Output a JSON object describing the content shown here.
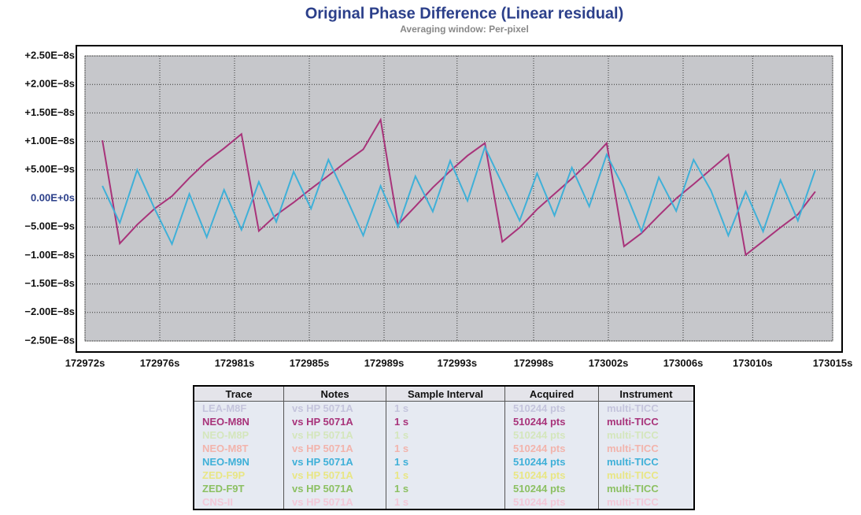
{
  "chart_data": {
    "type": "line",
    "title": "Original Phase Difference (Linear residual)",
    "subtitle": "Averaging window: Per-pixel",
    "x": [
      172973,
      172974,
      172975,
      172976,
      172977,
      172978,
      172979,
      172980,
      172981,
      172982,
      172983,
      172984,
      172985,
      172986,
      172987,
      172988,
      172989,
      172990,
      172991,
      172992,
      172993,
      172994,
      172995,
      172996,
      172997,
      172998,
      172999,
      173000,
      173001,
      173002,
      173003,
      173004,
      173005,
      173006,
      173007,
      173008,
      173009,
      173010,
      173011,
      173012,
      173013,
      173014
    ],
    "series": [
      {
        "color": "#a8337a",
        "values": [
          1.02e-08,
          -7.9e-09,
          -4.6e-09,
          -1.8e-09,
          4e-10,
          3.6e-09,
          6.5e-09,
          8.8e-09,
          1.13e-08,
          -5.7e-09,
          -2.9e-09,
          -7e-10,
          1.7e-09,
          4e-09,
          6.4e-09,
          8.6e-09,
          1.38e-08,
          -4.6e-09,
          -1.4e-09,
          1.9e-09,
          4.8e-09,
          7.5e-09,
          9.7e-09,
          -7.6e-09,
          -5.1e-09,
          -1.9e-09,
          8e-10,
          3.5e-09,
          6.4e-09,
          9.7e-09,
          -8.4e-09,
          -6.1e-09,
          -3e-09,
          0,
          2.5e-09,
          5.1e-09,
          7.7e-09,
          -9.9e-09,
          -7.5e-09,
          -5.1e-09,
          -2.8e-09,
          1.2e-09
        ]
      },
      {
        "color": "#3fb0d8",
        "values": [
          2.2e-09,
          -4.3e-09,
          5e-09,
          -1.8e-09,
          -8e-09,
          8e-10,
          -6.8e-09,
          1.5e-09,
          -5.5e-09,
          2.9e-09,
          -4.1e-09,
          4.7e-09,
          -1.8e-09,
          6.8e-09,
          3e-10,
          -6.5e-09,
          2.2e-09,
          -5e-09,
          3.9e-09,
          -2.3e-09,
          6.6e-09,
          -4e-10,
          9e-09,
          2.6e-09,
          -3.9e-09,
          4.4e-09,
          -3e-09,
          5.4e-09,
          -1.4e-09,
          7.7e-09,
          1.7e-09,
          -5.8e-09,
          3.7e-09,
          -2.2e-09,
          6.8e-09,
          1.4e-09,
          -6.5e-09,
          1.2e-09,
          -5.8e-09,
          3.2e-09,
          -3.9e-09,
          5e-09
        ]
      }
    ],
    "xlim": [
      172972,
      173015
    ],
    "xticks": [
      {
        "value": 172972,
        "label": "172972s"
      },
      {
        "value": 172976.3,
        "label": "172976s"
      },
      {
        "value": 172980.6,
        "label": "172981s"
      },
      {
        "value": 172984.9,
        "label": "172985s"
      },
      {
        "value": 172989.2,
        "label": "172989s"
      },
      {
        "value": 172993.4,
        "label": "172993s"
      },
      {
        "value": 172997.8,
        "label": "172998s"
      },
      {
        "value": 173002.1,
        "label": "173002s"
      },
      {
        "value": 173006.4,
        "label": "173006s"
      },
      {
        "value": 173010.4,
        "label": "173010s"
      },
      {
        "value": 173015,
        "label": "173015s"
      }
    ],
    "ylim": [
      -2.5e-08,
      2.5e-08
    ],
    "yticks": [
      {
        "value": 2.5e-08,
        "label": "+2.50E−8s"
      },
      {
        "value": 2e-08,
        "label": "+2.00E−8s"
      },
      {
        "value": 1.5e-08,
        "label": "+1.50E−8s"
      },
      {
        "value": 1e-08,
        "label": "+1.00E−8s"
      },
      {
        "value": 5e-09,
        "label": "+5.00E−9s"
      },
      {
        "value": 0,
        "label": "0.00E+0s"
      },
      {
        "value": -5e-09,
        "label": "−5.00E−9s"
      },
      {
        "value": -1e-08,
        "label": "−1.00E−8s"
      },
      {
        "value": -1.5e-08,
        "label": "−1.50E−8s"
      },
      {
        "value": -2e-08,
        "label": "−2.00E−8s"
      },
      {
        "value": -2.5e-08,
        "label": "−2.50E−8s"
      }
    ],
    "grid": true
  },
  "legend_table": {
    "columns": [
      "Trace",
      "Notes",
      "Sample Interval",
      "Acquired",
      "Instrument"
    ],
    "rows": [
      [
        "LEA-M8F",
        "vs HP 5071A",
        "1 s",
        "510244 pts",
        "multi-TICC"
      ],
      [
        "NEO-M8N",
        "vs HP 5071A",
        "1 s",
        "510244 pts",
        "multi-TICC"
      ],
      [
        "NEO-M8P",
        "vs HP 5071A",
        "1 s",
        "510244 pts",
        "multi-TICC"
      ],
      [
        "NEO-M8T",
        "vs HP 5071A",
        "1 s",
        "510244 pts",
        "multi-TICC"
      ],
      [
        "NEO-M9N",
        "vs HP 5071A",
        "1 s",
        "510244 pts",
        "multi-TICC"
      ],
      [
        "ZED-F9P",
        "vs HP 5071A",
        "1 s",
        "510244 pts",
        "multi-TICC"
      ],
      [
        "ZED-F9T",
        "vs HP 5071A",
        "1 s",
        "510244 pts",
        "multi-TICC"
      ],
      [
        "CNS-II",
        "vs HP 5071A",
        "1 s",
        "510244 pts",
        "multi-TICC"
      ]
    ],
    "row_colors": [
      "#c4c4dc",
      "#a8337a",
      "#d4e6bc",
      "#f2b4ac",
      "#3fb0d8",
      "#e8e684",
      "#8cc062",
      "#f2c8d8"
    ]
  }
}
